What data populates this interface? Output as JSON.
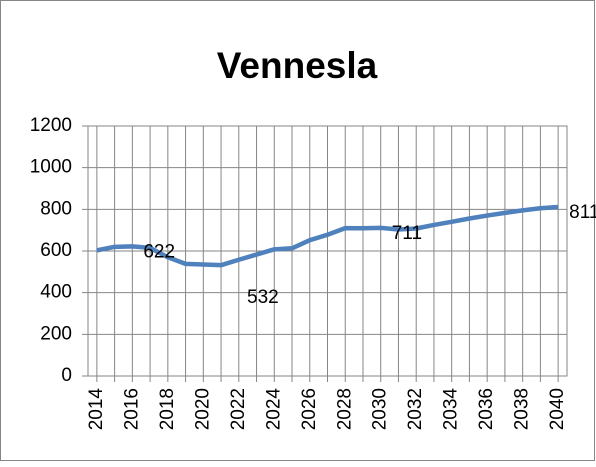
{
  "chart_data": {
    "type": "line",
    "title": "Vennesla",
    "x": [
      2014,
      2015,
      2016,
      2017,
      2018,
      2019,
      2020,
      2021,
      2022,
      2023,
      2024,
      2025,
      2026,
      2027,
      2028,
      2029,
      2030,
      2031,
      2032,
      2033,
      2034,
      2035,
      2036,
      2037,
      2038,
      2039,
      2040
    ],
    "values": [
      603,
      620,
      622,
      615,
      570,
      538,
      535,
      532,
      558,
      583,
      608,
      613,
      652,
      678,
      710,
      709,
      711,
      703,
      708,
      725,
      740,
      756,
      770,
      783,
      795,
      805,
      811
    ],
    "value_labels": [
      null,
      null,
      "622",
      null,
      null,
      null,
      null,
      "532",
      null,
      null,
      null,
      null,
      null,
      null,
      null,
      null,
      "711",
      null,
      null,
      null,
      null,
      null,
      null,
      null,
      null,
      null,
      "811"
    ],
    "color": "#4f81bd",
    "xlim": [
      2013.5,
      2040.5
    ],
    "xticks": [
      2014,
      2016,
      2018,
      2020,
      2022,
      2024,
      2026,
      2028,
      2030,
      2032,
      2034,
      2036,
      2038,
      2040
    ],
    "ylim": [
      0,
      1200
    ],
    "yticks": [
      0,
      200,
      400,
      600,
      800,
      1000,
      1200
    ],
    "grid": true
  }
}
